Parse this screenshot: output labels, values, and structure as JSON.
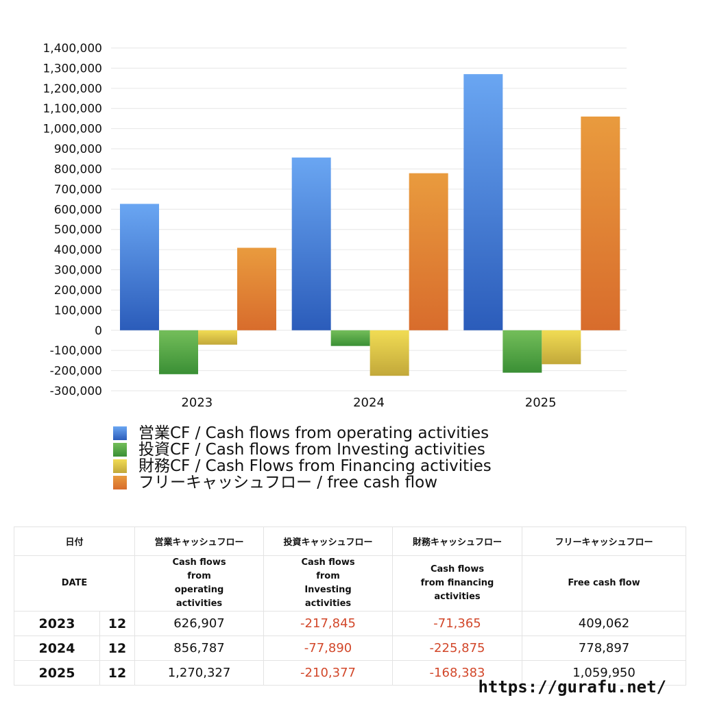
{
  "chart_data": {
    "type": "bar",
    "categories": [
      "2023",
      "2024",
      "2025"
    ],
    "ylim": [
      -300000,
      1400000
    ],
    "ytick_step": 100000,
    "yticks": [
      "1,400,000",
      "1,300,000",
      "1,200,000",
      "1,100,000",
      "1,000,000",
      "900,000",
      "800,000",
      "700,000",
      "600,000",
      "500,000",
      "400,000",
      "300,000",
      "200,000",
      "100,000",
      "0",
      "-100,000",
      "-200,000",
      "-300,000"
    ],
    "grid": true,
    "legend_position": "bottom-left",
    "series": [
      {
        "name": "営業CF / Cash flows from operating activities",
        "values": [
          626907,
          856787,
          1270327
        ],
        "color_top": "#6aa6f2",
        "color_bottom": "#2b5cba"
      },
      {
        "name": "投資CF / Cash flows from Investing activities",
        "values": [
          -217845,
          -77890,
          -210377
        ],
        "color_top": "#74be5a",
        "color_bottom": "#3a8f35"
      },
      {
        "name": "財務CF / Cash Flows from Financing activities",
        "values": [
          -71365,
          -225875,
          -168383
        ],
        "color_top": "#f1dc54",
        "color_bottom": "#c2a83a"
      },
      {
        "name": "フリーキャッシュフロー / free cash flow",
        "values": [
          409062,
          778897,
          1059950
        ],
        "color_top": "#e99b3e",
        "color_bottom": "#d86c2c"
      }
    ]
  },
  "table": {
    "header_row1": [
      "日付",
      "営業キャッシュフロー",
      "投資キャッシュフロー",
      "財務キャッシュフロー",
      "フリーキャッシュフロー"
    ],
    "header_row2": [
      "DATE",
      "Cash flows from operating activities",
      "Cash flows from Investing activities",
      "Cash flows from financing activities",
      "Free cash flow"
    ],
    "rows": [
      {
        "year": "2023",
        "month": "12",
        "operating": "626,907",
        "investing": "-217,845",
        "financing": "-71,365",
        "free": "409,062"
      },
      {
        "year": "2024",
        "month": "12",
        "operating": "856,787",
        "investing": "-77,890",
        "financing": "-225,875",
        "free": "778,897"
      },
      {
        "year": "2025",
        "month": "12",
        "operating": "1,270,327",
        "investing": "-210,377",
        "financing": "-168,383",
        "free": "1,059,950"
      }
    ]
  },
  "footer": {
    "url": "https://gurafu.net/"
  }
}
